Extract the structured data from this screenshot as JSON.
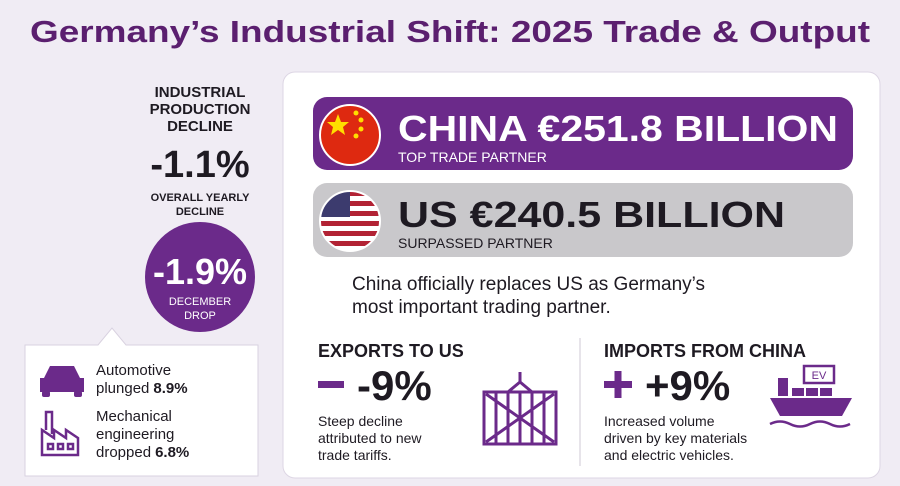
{
  "header": {
    "title": "Germany’s Industrial Shift: 2025 Trade & Output"
  },
  "production": {
    "heading": [
      "INDUSTRIAL",
      "PRODUCTION",
      "DECLINE"
    ],
    "yearly_value": "-1.1%",
    "yearly_label": [
      "OVERALL YEARLY",
      "DECLINE"
    ],
    "december_value": "-1.9%",
    "december_label": [
      "DECEMBER",
      "DROP"
    ]
  },
  "sectors": [
    {
      "lines": [
        "Automotive",
        "plunged"
      ],
      "value": "8.9%"
    },
    {
      "lines": [
        "Mechanical",
        "engineering",
        "dropped"
      ],
      "value": "6.8%"
    }
  ],
  "partners": [
    {
      "headline": "CHINA €251.8 BILLION",
      "subtitle": "TOP TRADE PARTNER"
    },
    {
      "headline": "US €240.5 BILLION",
      "subtitle": "SURPASSED PARTNER"
    }
  ],
  "statement": [
    "China officially replaces US as Germany’s",
    "most important trading partner."
  ],
  "exports": {
    "heading": "EXPORTS TO US",
    "value": "-9%",
    "description": [
      "Steep decline",
      "attributed to new",
      "trade tariffs."
    ]
  },
  "imports": {
    "heading": "IMPORTS FROM CHINA",
    "value": "+9%",
    "description": [
      "Increased volume",
      "driven by key materials",
      "and electric vehicles."
    ],
    "icon_label": "EV"
  }
}
